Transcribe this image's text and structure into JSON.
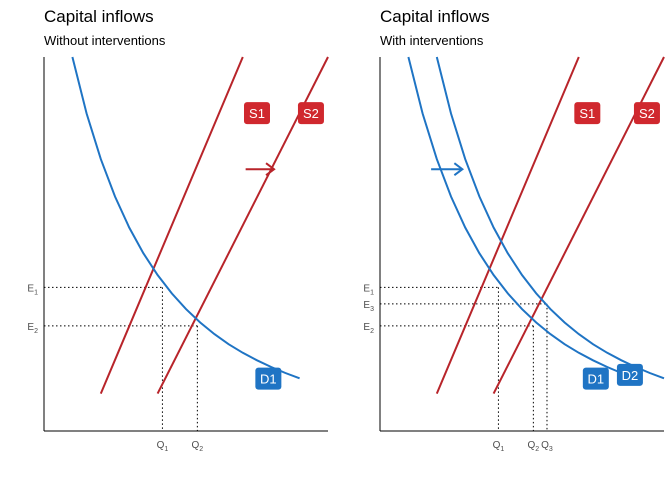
{
  "colors": {
    "supply": "#b8242a",
    "demand": "#1f74c4",
    "badge_supply": "#d0282e",
    "badge_demand": "#1f74c4"
  },
  "chart_data": [
    {
      "type": "line",
      "title": "Capital inflows",
      "subtitle": "Without interventions",
      "xlim": [
        0,
        10
      ],
      "ylim": [
        0,
        10
      ],
      "grid": false,
      "series": [
        {
          "name": "S1",
          "role": "supply",
          "x": [
            2.0,
            7.0
          ],
          "y": [
            1.0,
            10.0
          ]
        },
        {
          "name": "S2",
          "role": "supply",
          "x": [
            4.0,
            10.0
          ],
          "y": [
            1.0,
            10.0
          ]
        },
        {
          "name": "D1",
          "role": "demand",
          "x": [
            1.0,
            1.5,
            2.0,
            2.5,
            3.0,
            3.5,
            4.0,
            4.5,
            5.0,
            5.5,
            6.0,
            6.5,
            7.0,
            7.5,
            8.0,
            8.5,
            9.0
          ],
          "y": [
            10.0,
            8.49,
            7.27,
            6.27,
            5.44,
            4.75,
            4.17,
            3.68,
            3.26,
            2.9,
            2.59,
            2.32,
            2.09,
            1.89,
            1.71,
            1.55,
            1.41
          ]
        }
      ],
      "equilibria": [
        {
          "x": 4.17,
          "y": 3.84
        },
        {
          "x": 5.4,
          "y": 2.81
        }
      ],
      "y_tick_labels": [
        {
          "main": "E",
          "sub": "1",
          "y": 3.84
        },
        {
          "main": "E",
          "sub": "2",
          "y": 2.81
        }
      ],
      "x_tick_labels": [
        {
          "main": "Q",
          "sub": "1",
          "x": 4.17
        },
        {
          "main": "Q",
          "sub": "2",
          "x": 5.4
        }
      ],
      "shift_arrow": {
        "role": "supply",
        "from": [
          7.1,
          7.0
        ],
        "to": [
          8.1,
          7.0
        ]
      },
      "badges": [
        {
          "text": "S1",
          "role": "supply",
          "x": 7.5,
          "y": 8.5
        },
        {
          "text": "S2",
          "role": "supply",
          "x": 9.4,
          "y": 8.5
        },
        {
          "text": "D1",
          "role": "demand",
          "x": 7.9,
          "y": 1.4
        }
      ]
    },
    {
      "type": "line",
      "title": "Capital inflows",
      "subtitle": "With interventions",
      "xlim": [
        0,
        10
      ],
      "ylim": [
        0,
        10
      ],
      "grid": false,
      "series": [
        {
          "name": "S1",
          "role": "supply",
          "x": [
            2.0,
            7.0
          ],
          "y": [
            1.0,
            10.0
          ]
        },
        {
          "name": "S2",
          "role": "supply",
          "x": [
            4.0,
            10.0
          ],
          "y": [
            1.0,
            10.0
          ]
        },
        {
          "name": "D1",
          "role": "demand",
          "x": [
            1.0,
            1.5,
            2.0,
            2.5,
            3.0,
            3.5,
            4.0,
            4.5,
            5.0,
            5.5,
            6.0,
            6.5,
            7.0,
            7.5,
            8.0,
            8.5,
            9.0
          ],
          "y": [
            10.0,
            8.49,
            7.27,
            6.27,
            5.44,
            4.75,
            4.17,
            3.68,
            3.26,
            2.9,
            2.59,
            2.32,
            2.09,
            1.89,
            1.71,
            1.55,
            1.41
          ]
        },
        {
          "name": "D2",
          "role": "demand",
          "x": [
            2.0,
            2.5,
            3.0,
            3.5,
            4.0,
            4.5,
            5.0,
            5.5,
            6.0,
            6.5,
            7.0,
            7.5,
            8.0,
            8.5,
            9.0,
            9.5,
            10.0
          ],
          "y": [
            10.0,
            8.49,
            7.27,
            6.27,
            5.44,
            4.75,
            4.17,
            3.68,
            3.26,
            2.9,
            2.59,
            2.32,
            2.09,
            1.89,
            1.71,
            1.55,
            1.41
          ]
        }
      ],
      "equilibria": [
        {
          "x": 4.17,
          "y": 3.84
        },
        {
          "x": 5.4,
          "y": 2.81
        },
        {
          "x": 5.88,
          "y": 3.4
        }
      ],
      "y_tick_labels": [
        {
          "main": "E",
          "sub": "1",
          "y": 3.84
        },
        {
          "main": "E",
          "sub": "3",
          "y": 3.4
        },
        {
          "main": "E",
          "sub": "2",
          "y": 2.81
        }
      ],
      "x_tick_labels": [
        {
          "main": "Q",
          "sub": "1",
          "x": 4.17
        },
        {
          "main": "Q",
          "sub": "2",
          "x": 5.4
        },
        {
          "main": "Q",
          "sub": "3",
          "x": 5.88
        }
      ],
      "shift_arrow": {
        "role": "demand",
        "from": [
          1.8,
          7.0
        ],
        "to": [
          2.9,
          7.0
        ]
      },
      "badges": [
        {
          "text": "S1",
          "role": "supply",
          "x": 7.3,
          "y": 8.5
        },
        {
          "text": "S2",
          "role": "supply",
          "x": 9.4,
          "y": 8.5
        },
        {
          "text": "D1",
          "role": "demand",
          "x": 7.6,
          "y": 1.4
        },
        {
          "text": "D2",
          "role": "demand",
          "x": 8.8,
          "y": 1.5
        }
      ]
    }
  ]
}
